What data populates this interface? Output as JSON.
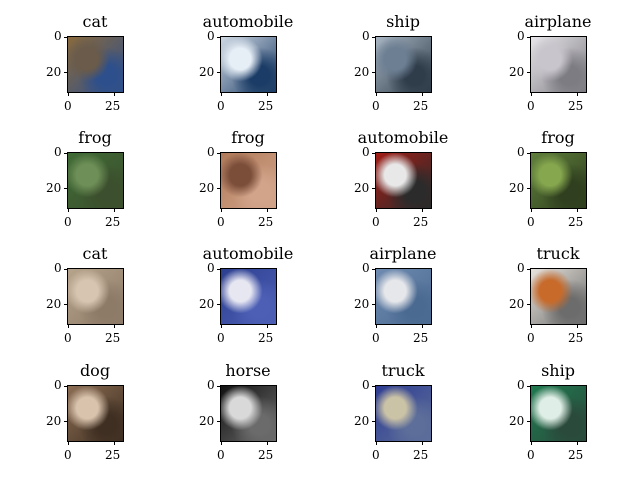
{
  "axis": {
    "y_ticks": [
      "0",
      "20"
    ],
    "x_ticks": [
      "0",
      "25"
    ]
  },
  "panels": [
    {
      "label": "cat",
      "colors": [
        "#8a6a3c",
        "#6a5b4a",
        "#2d4f8c"
      ]
    },
    {
      "label": "automobile",
      "colors": [
        "#cfd8e3",
        "#e6eef6",
        "#1b3c66"
      ]
    },
    {
      "label": "ship",
      "colors": [
        "#a8b5c3",
        "#6c7f93",
        "#2f3c4a"
      ]
    },
    {
      "label": "airplane",
      "colors": [
        "#e8e6ea",
        "#c8c5cc",
        "#7d7c82"
      ]
    },
    {
      "label": "frog",
      "colors": [
        "#3f6b35",
        "#6e8f57",
        "#3c4f2e"
      ]
    },
    {
      "label": "frog",
      "colors": [
        "#b07a5a",
        "#7b4e3a",
        "#d2a48a"
      ]
    },
    {
      "label": "automobile",
      "colors": [
        "#a21d16",
        "#e8e8e8",
        "#2b2b2b"
      ]
    },
    {
      "label": "frog",
      "colors": [
        "#5f7e3b",
        "#86a74e",
        "#2f3f1f"
      ]
    },
    {
      "label": "cat",
      "colors": [
        "#b7a48c",
        "#d7c5b1",
        "#8d7a67"
      ]
    },
    {
      "label": "automobile",
      "colors": [
        "#2d3f8f",
        "#e7e7f2",
        "#4c5fb5"
      ]
    },
    {
      "label": "airplane",
      "colors": [
        "#6f8bb0",
        "#e6e7ea",
        "#4b6a92"
      ]
    },
    {
      "label": "truck",
      "colors": [
        "#e8e3dc",
        "#c76a2a",
        "#6c6c6c"
      ]
    },
    {
      "label": "dog",
      "colors": [
        "#8b6d53",
        "#d9c3ad",
        "#3f2f22"
      ]
    },
    {
      "label": "horse",
      "colors": [
        "#111111",
        "#d9d9d9",
        "#6b6b6b"
      ]
    },
    {
      "label": "truck",
      "colors": [
        "#2d3c92",
        "#cbc3a6",
        "#5d6e9a"
      ]
    },
    {
      "label": "ship",
      "colors": [
        "#1f7a4f",
        "#dfeee6",
        "#2a4a3c"
      ]
    }
  ]
}
